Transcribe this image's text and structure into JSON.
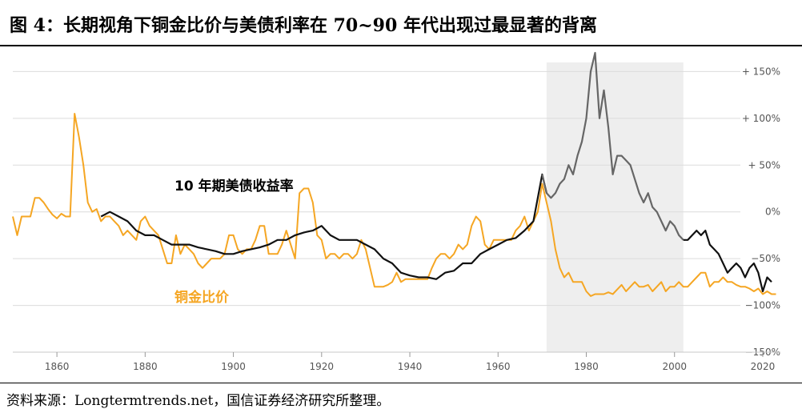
{
  "figure": {
    "title": "图 4：长期视角下铜金比价与美债利率在 70~90 年代出现过最显著的背离",
    "source": "资料来源：Longtermtrends.net，国信证券经济研究所整理。"
  },
  "colors": {
    "copper_gold": "#f5a623",
    "yield_main": "#111111",
    "yield_shaded": "#666666",
    "shade": "#eeeeee"
  },
  "chart_data": {
    "type": "line",
    "xlim": [
      1850,
      2024
    ],
    "ylim": [
      -150,
      170
    ],
    "x_ticks": [
      1860,
      1880,
      1900,
      1920,
      1940,
      1960,
      1980,
      2000,
      2020
    ],
    "y_ticks": [
      {
        "value": 150,
        "label": "+ 150%"
      },
      {
        "value": 100,
        "label": "+ 100%"
      },
      {
        "value": 50,
        "label": "+ 50%"
      },
      {
        "value": 0,
        "label": "0%"
      },
      {
        "value": -50,
        "label": "−50%"
      },
      {
        "value": -100,
        "label": "−100%"
      },
      {
        "value": -150,
        "label": "−150%"
      }
    ],
    "shaded_region": [
      1971,
      2002
    ],
    "annotations": [
      {
        "text": "10 年期美债收益率",
        "series": "yield"
      },
      {
        "text": "铜金比价",
        "series": "copper_gold"
      }
    ],
    "series": [
      {
        "id": "copper_gold",
        "name": "铜金比价",
        "points": [
          [
            1850,
            -5
          ],
          [
            1851,
            -25
          ],
          [
            1852,
            -5
          ],
          [
            1854,
            -5
          ],
          [
            1855,
            15
          ],
          [
            1856,
            15
          ],
          [
            1857,
            10
          ],
          [
            1858,
            3
          ],
          [
            1859,
            -3
          ],
          [
            1860,
            -7
          ],
          [
            1861,
            -2
          ],
          [
            1862,
            -5
          ],
          [
            1863,
            -5
          ],
          [
            1864,
            105
          ],
          [
            1865,
            80
          ],
          [
            1866,
            50
          ],
          [
            1867,
            10
          ],
          [
            1868,
            0
          ],
          [
            1869,
            3
          ],
          [
            1870,
            -10
          ],
          [
            1871,
            -5
          ],
          [
            1872,
            -5
          ],
          [
            1873,
            -10
          ],
          [
            1874,
            -15
          ],
          [
            1875,
            -25
          ],
          [
            1876,
            -20
          ],
          [
            1877,
            -25
          ],
          [
            1878,
            -30
          ],
          [
            1879,
            -10
          ],
          [
            1880,
            -5
          ],
          [
            1881,
            -15
          ],
          [
            1882,
            -20
          ],
          [
            1883,
            -25
          ],
          [
            1884,
            -40
          ],
          [
            1885,
            -55
          ],
          [
            1886,
            -55
          ],
          [
            1887,
            -25
          ],
          [
            1888,
            -45
          ],
          [
            1889,
            -35
          ],
          [
            1890,
            -40
          ],
          [
            1891,
            -45
          ],
          [
            1892,
            -55
          ],
          [
            1893,
            -60
          ],
          [
            1894,
            -55
          ],
          [
            1895,
            -50
          ],
          [
            1896,
            -50
          ],
          [
            1897,
            -50
          ],
          [
            1898,
            -45
          ],
          [
            1899,
            -25
          ],
          [
            1900,
            -25
          ],
          [
            1901,
            -40
          ],
          [
            1902,
            -45
          ],
          [
            1903,
            -40
          ],
          [
            1904,
            -40
          ],
          [
            1905,
            -30
          ],
          [
            1906,
            -15
          ],
          [
            1907,
            -15
          ],
          [
            1908,
            -45
          ],
          [
            1909,
            -45
          ],
          [
            1910,
            -45
          ],
          [
            1911,
            -35
          ],
          [
            1912,
            -20
          ],
          [
            1913,
            -35
          ],
          [
            1914,
            -50
          ],
          [
            1915,
            20
          ],
          [
            1916,
            25
          ],
          [
            1917,
            25
          ],
          [
            1918,
            10
          ],
          [
            1919,
            -25
          ],
          [
            1920,
            -30
          ],
          [
            1921,
            -50
          ],
          [
            1922,
            -45
          ],
          [
            1923,
            -45
          ],
          [
            1924,
            -50
          ],
          [
            1925,
            -45
          ],
          [
            1926,
            -45
          ],
          [
            1927,
            -50
          ],
          [
            1928,
            -45
          ],
          [
            1929,
            -30
          ],
          [
            1930,
            -40
          ],
          [
            1931,
            -60
          ],
          [
            1932,
            -80
          ],
          [
            1933,
            -80
          ],
          [
            1934,
            -80
          ],
          [
            1935,
            -78
          ],
          [
            1936,
            -75
          ],
          [
            1937,
            -65
          ],
          [
            1938,
            -75
          ],
          [
            1939,
            -72
          ],
          [
            1940,
            -72
          ],
          [
            1941,
            -72
          ],
          [
            1942,
            -72
          ],
          [
            1943,
            -72
          ],
          [
            1944,
            -72
          ],
          [
            1945,
            -60
          ],
          [
            1946,
            -50
          ],
          [
            1947,
            -45
          ],
          [
            1948,
            -45
          ],
          [
            1949,
            -50
          ],
          [
            1950,
            -45
          ],
          [
            1951,
            -35
          ],
          [
            1952,
            -40
          ],
          [
            1953,
            -35
          ],
          [
            1954,
            -15
          ],
          [
            1955,
            -5
          ],
          [
            1956,
            -10
          ],
          [
            1957,
            -35
          ],
          [
            1958,
            -40
          ],
          [
            1959,
            -30
          ],
          [
            1960,
            -30
          ],
          [
            1961,
            -30
          ],
          [
            1962,
            -30
          ],
          [
            1963,
            -30
          ],
          [
            1964,
            -20
          ],
          [
            1965,
            -15
          ],
          [
            1966,
            -5
          ],
          [
            1967,
            -20
          ],
          [
            1968,
            -10
          ],
          [
            1969,
            0
          ],
          [
            1970,
            30
          ],
          [
            1971,
            10
          ],
          [
            1972,
            -10
          ],
          [
            1973,
            -40
          ],
          [
            1974,
            -60
          ],
          [
            1975,
            -70
          ],
          [
            1976,
            -65
          ],
          [
            1977,
            -75
          ],
          [
            1978,
            -75
          ],
          [
            1979,
            -75
          ],
          [
            1980,
            -85
          ],
          [
            1981,
            -90
          ],
          [
            1982,
            -88
          ],
          [
            1983,
            -88
          ],
          [
            1984,
            -88
          ],
          [
            1985,
            -86
          ],
          [
            1986,
            -88
          ],
          [
            1987,
            -83
          ],
          [
            1988,
            -78
          ],
          [
            1989,
            -85
          ],
          [
            1990,
            -80
          ],
          [
            1991,
            -75
          ],
          [
            1992,
            -80
          ],
          [
            1993,
            -80
          ],
          [
            1994,
            -78
          ],
          [
            1995,
            -85
          ],
          [
            1996,
            -80
          ],
          [
            1997,
            -75
          ],
          [
            1998,
            -85
          ],
          [
            1999,
            -80
          ],
          [
            2000,
            -80
          ],
          [
            2001,
            -75
          ],
          [
            2002,
            -80
          ],
          [
            2003,
            -80
          ],
          [
            2004,
            -75
          ],
          [
            2005,
            -70
          ],
          [
            2006,
            -65
          ],
          [
            2007,
            -65
          ],
          [
            2008,
            -80
          ],
          [
            2009,
            -75
          ],
          [
            2010,
            -75
          ],
          [
            2011,
            -70
          ],
          [
            2012,
            -75
          ],
          [
            2013,
            -75
          ],
          [
            2014,
            -78
          ],
          [
            2015,
            -80
          ],
          [
            2016,
            -80
          ],
          [
            2017,
            -82
          ],
          [
            2018,
            -85
          ],
          [
            2019,
            -82
          ],
          [
            2020,
            -88
          ],
          [
            2021,
            -85
          ],
          [
            2022,
            -88
          ],
          [
            2023,
            -88
          ]
        ]
      },
      {
        "id": "yield",
        "name": "10 年期美债收益率",
        "points": [
          [
            1870,
            -5
          ],
          [
            1872,
            0
          ],
          [
            1874,
            -5
          ],
          [
            1876,
            -10
          ],
          [
            1878,
            -20
          ],
          [
            1880,
            -25
          ],
          [
            1882,
            -25
          ],
          [
            1884,
            -30
          ],
          [
            1886,
            -35
          ],
          [
            1888,
            -35
          ],
          [
            1890,
            -35
          ],
          [
            1892,
            -38
          ],
          [
            1894,
            -40
          ],
          [
            1896,
            -42
          ],
          [
            1898,
            -45
          ],
          [
            1900,
            -45
          ],
          [
            1902,
            -42
          ],
          [
            1904,
            -40
          ],
          [
            1906,
            -38
          ],
          [
            1908,
            -35
          ],
          [
            1910,
            -30
          ],
          [
            1912,
            -30
          ],
          [
            1914,
            -25
          ],
          [
            1916,
            -22
          ],
          [
            1918,
            -20
          ],
          [
            1920,
            -15
          ],
          [
            1922,
            -25
          ],
          [
            1924,
            -30
          ],
          [
            1926,
            -30
          ],
          [
            1928,
            -30
          ],
          [
            1930,
            -35
          ],
          [
            1932,
            -40
          ],
          [
            1934,
            -50
          ],
          [
            1936,
            -55
          ],
          [
            1938,
            -65
          ],
          [
            1940,
            -68
          ],
          [
            1942,
            -70
          ],
          [
            1944,
            -70
          ],
          [
            1946,
            -72
          ],
          [
            1948,
            -65
          ],
          [
            1950,
            -63
          ],
          [
            1952,
            -55
          ],
          [
            1954,
            -55
          ],
          [
            1956,
            -45
          ],
          [
            1958,
            -40
          ],
          [
            1960,
            -35
          ],
          [
            1962,
            -30
          ],
          [
            1964,
            -28
          ],
          [
            1966,
            -20
          ],
          [
            1968,
            -10
          ],
          [
            1970,
            40
          ],
          [
            1971,
            20
          ],
          [
            1972,
            15
          ],
          [
            1973,
            20
          ],
          [
            1974,
            30
          ],
          [
            1975,
            35
          ],
          [
            1976,
            50
          ],
          [
            1977,
            40
          ],
          [
            1978,
            60
          ],
          [
            1979,
            75
          ],
          [
            1980,
            100
          ],
          [
            1981,
            150
          ],
          [
            1982,
            170
          ],
          [
            1983,
            100
          ],
          [
            1984,
            130
          ],
          [
            1985,
            90
          ],
          [
            1986,
            40
          ],
          [
            1987,
            60
          ],
          [
            1988,
            60
          ],
          [
            1989,
            55
          ],
          [
            1990,
            50
          ],
          [
            1991,
            35
          ],
          [
            1992,
            20
          ],
          [
            1993,
            10
          ],
          [
            1994,
            20
          ],
          [
            1995,
            5
          ],
          [
            1996,
            0
          ],
          [
            1997,
            -10
          ],
          [
            1998,
            -20
          ],
          [
            1999,
            -10
          ],
          [
            2000,
            -15
          ],
          [
            2001,
            -25
          ],
          [
            2002,
            -30
          ],
          [
            2003,
            -30
          ],
          [
            2004,
            -25
          ],
          [
            2005,
            -20
          ],
          [
            2006,
            -25
          ],
          [
            2007,
            -20
          ],
          [
            2008,
            -35
          ],
          [
            2009,
            -40
          ],
          [
            2010,
            -45
          ],
          [
            2011,
            -55
          ],
          [
            2012,
            -65
          ],
          [
            2013,
            -60
          ],
          [
            2014,
            -55
          ],
          [
            2015,
            -60
          ],
          [
            2016,
            -70
          ],
          [
            2017,
            -60
          ],
          [
            2018,
            -55
          ],
          [
            2019,
            -65
          ],
          [
            2020,
            -85
          ],
          [
            2021,
            -70
          ],
          [
            2022,
            -75
          ]
        ]
      }
    ]
  }
}
